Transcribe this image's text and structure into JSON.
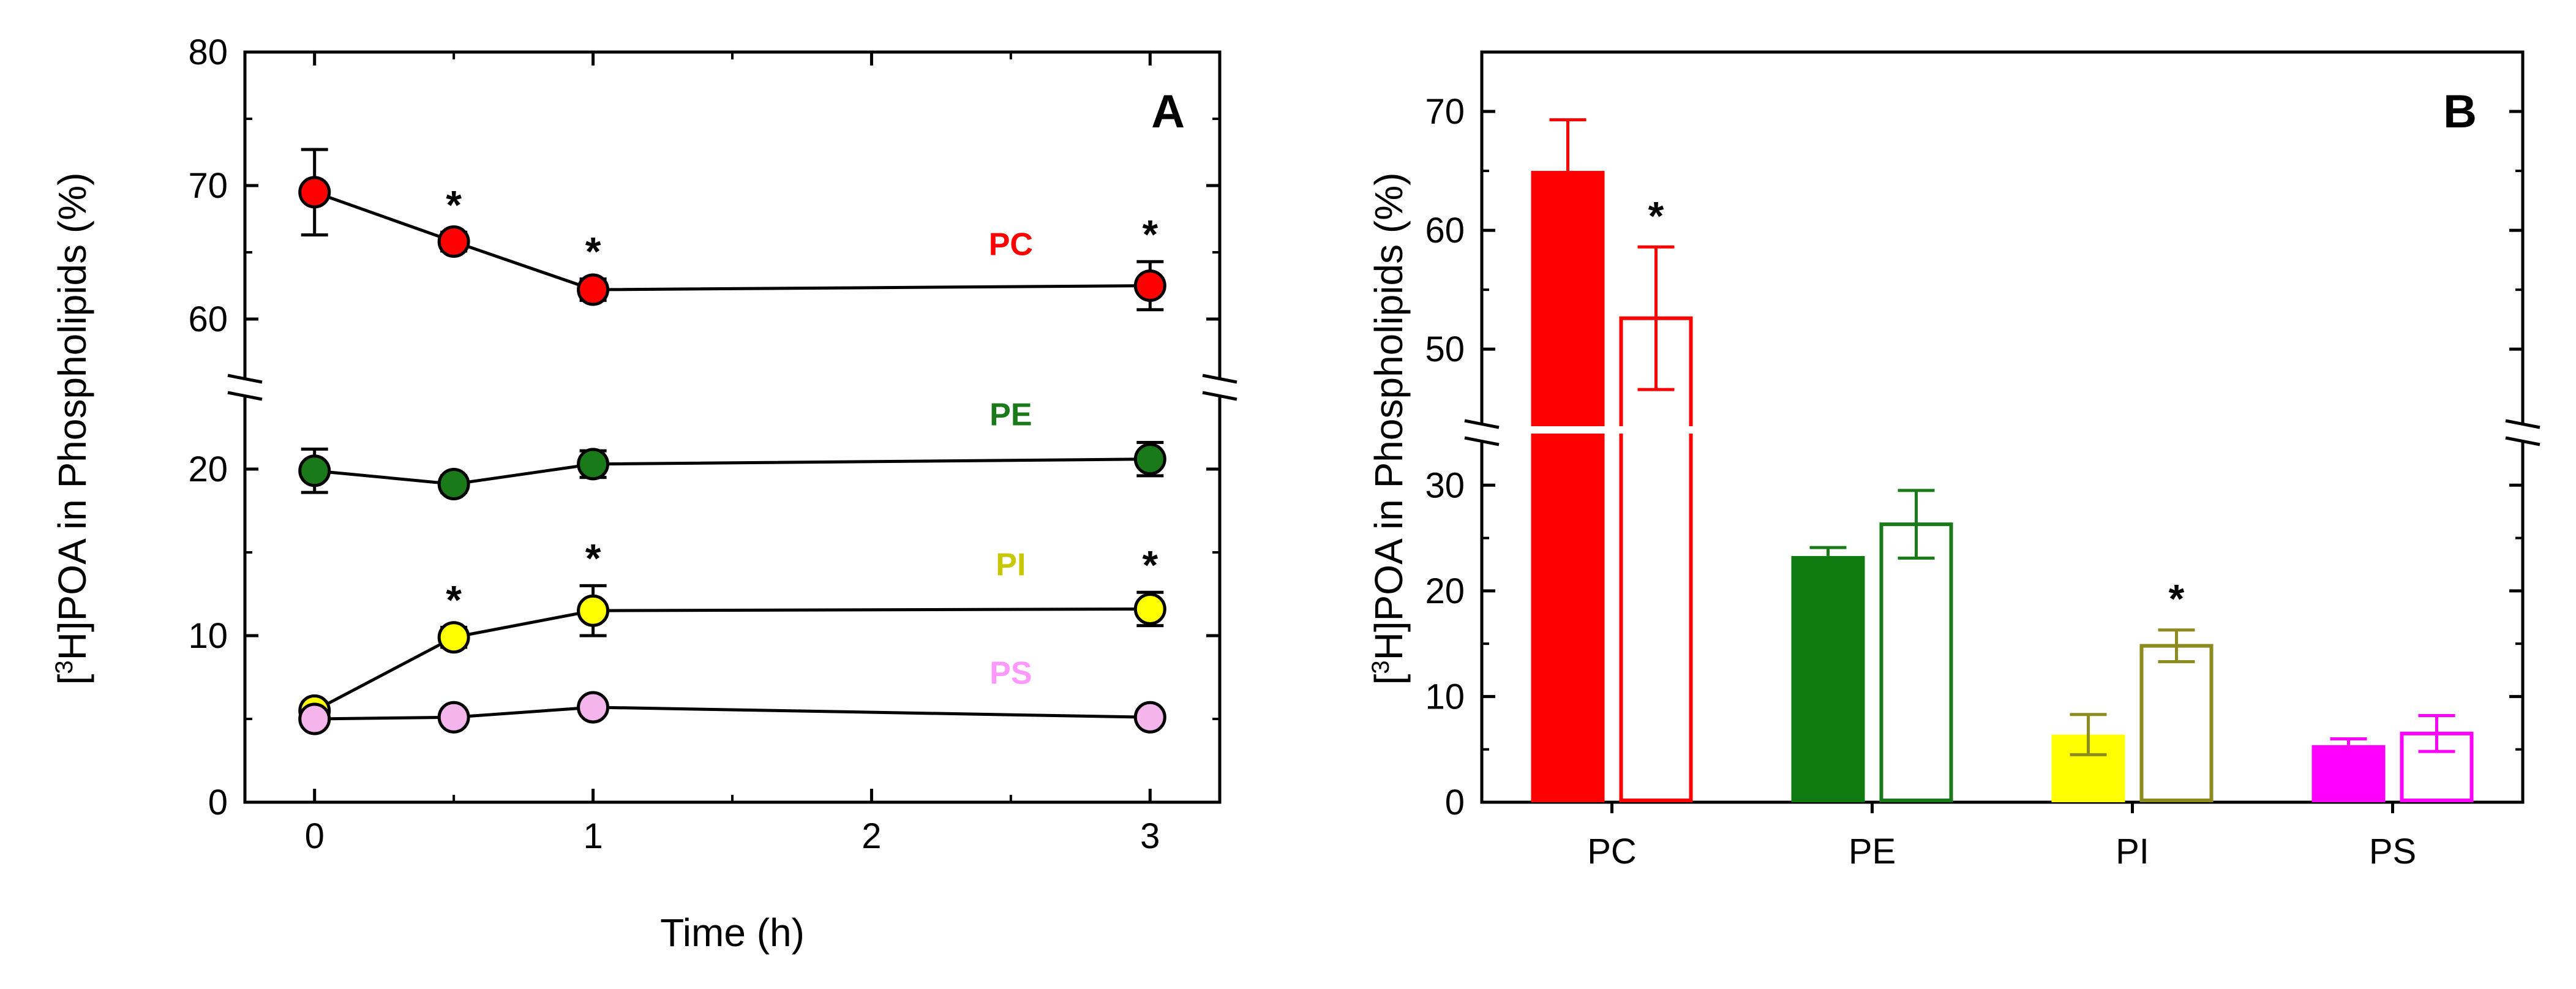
{
  "chart_data": [
    {
      "panel": "A",
      "type": "line",
      "xlabel": "Time (h)",
      "ylabel": "[3H]POA in Phospholipids (%)",
      "ylabel_parts": {
        "open": "[",
        "sup": "3",
        "rest": "H]POA in Phospholipids (%)"
      },
      "x_ticks": [
        "0",
        "1",
        "2",
        "3"
      ],
      "y_ticks_lower": [
        "0",
        "10",
        "20"
      ],
      "y_ticks_upper": [
        "60",
        "70",
        "80"
      ],
      "xlim": [
        -0.25,
        3.25
      ],
      "ylim_lower": [
        0,
        25
      ],
      "ylim_upper": [
        55,
        80
      ],
      "axis_break": "between 25 and 55",
      "series": [
        {
          "name": "PC",
          "color": "#ff0000",
          "marker_fill": "#ff0000",
          "x": [
            0,
            0.5,
            1,
            3
          ],
          "y": [
            69.5,
            65.8,
            62.2,
            62.5
          ],
          "err": [
            3.2,
            0.7,
            0.8,
            1.8
          ],
          "significant": [
            false,
            true,
            true,
            true
          ]
        },
        {
          "name": "PE",
          "color": "#1a7a1a",
          "marker_fill": "#1a7a1a",
          "x": [
            0,
            0.5,
            1,
            3
          ],
          "y": [
            19.9,
            19.1,
            20.3,
            20.6
          ],
          "err": [
            1.3,
            0.5,
            0.8,
            1.0
          ],
          "significant": [
            false,
            false,
            false,
            false
          ]
        },
        {
          "name": "PI",
          "color": "#c8c800",
          "marker_fill": "#ffff00",
          "x": [
            0,
            0.5,
            1,
            3
          ],
          "y": [
            5.5,
            9.9,
            11.5,
            11.6
          ],
          "err": [
            0.5,
            0.6,
            1.5,
            1.0
          ],
          "significant": [
            false,
            true,
            true,
            true
          ]
        },
        {
          "name": "PS",
          "color": "#ff99ff",
          "marker_fill": "#f4b4ec",
          "x": [
            0,
            0.5,
            1,
            3
          ],
          "y": [
            5.0,
            5.1,
            5.7,
            5.1
          ],
          "err": [
            0.4,
            0.3,
            0.4,
            0.3
          ],
          "significant": [
            false,
            false,
            false,
            false
          ]
        }
      ]
    },
    {
      "panel": "B",
      "type": "bar",
      "ylabel": "[3H]POA in Phospholipids (%)",
      "ylabel_parts": {
        "open": "[",
        "sup": "3",
        "rest": "H]POA in Phospholipids (%)"
      },
      "categories": [
        "PC",
        "PE",
        "PI",
        "PS"
      ],
      "y_ticks_lower": [
        "0",
        "10",
        "20",
        "30"
      ],
      "y_ticks_upper": [
        "50",
        "60",
        "70"
      ],
      "ylim_lower": [
        0,
        35
      ],
      "ylim_upper": [
        43,
        75
      ],
      "axis_break": "between 35 and 43",
      "series": [
        {
          "name": "filled",
          "values": [
            65.0,
            23.3,
            6.4,
            5.4
          ],
          "err": [
            4.3,
            0.8,
            1.9,
            0.6
          ],
          "significant": [
            false,
            false,
            false,
            false
          ]
        },
        {
          "name": "open",
          "values": [
            52.6,
            26.3,
            14.8,
            6.5
          ],
          "err": [
            6.0,
            3.2,
            1.5,
            1.7
          ],
          "significant": [
            true,
            false,
            true,
            false
          ]
        }
      ],
      "colors": {
        "PC": "#ff0000",
        "PE": "#0f7a0f",
        "PI": "#ffff00",
        "PS": "#ff00ff"
      },
      "outline_colors": {
        "PC": "#ff0000",
        "PE": "#1a7a1a",
        "PI": "#8b8b1e",
        "PS": "#ff00ff"
      }
    }
  ],
  "annotations": {
    "star": "*"
  }
}
